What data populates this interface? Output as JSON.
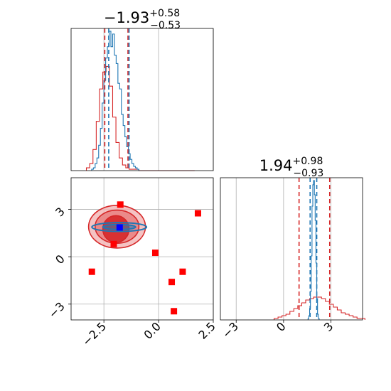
{
  "chart_data": {
    "type": "corner",
    "colors": {
      "blue": "#1f77b4",
      "red": "#d62728",
      "grid": "#b0b0b0"
    },
    "panels": {
      "hist_x": {
        "title": {
          "main": "−1.93",
          "sup": "+0.58",
          "sub": "−0.53"
        },
        "xlim": [
          -4.0,
          2.5
        ],
        "quantile_lines": {
          "blue": [
            -2.28,
            -1.35
          ],
          "red": [
            -2.46,
            -1.4
          ]
        },
        "hist_blue": {
          "edges_start": -3.06,
          "bin_width": 0.08,
          "counts": [
            1,
            2,
            5,
            9,
            18,
            30,
            48,
            64,
            80,
            88,
            99,
            88,
            97,
            82,
            76,
            62,
            58,
            40,
            32,
            24,
            17,
            12,
            8,
            5,
            3,
            2,
            1
          ]
        },
        "hist_red": {
          "edges_start": -3.3,
          "bin_width": 0.15,
          "counts": [
            2,
            5,
            15,
            35,
            58,
            70,
            74,
            60,
            38,
            20,
            9,
            4,
            2,
            1,
            1,
            1,
            0,
            0,
            0,
            0,
            0,
            0,
            0,
            0,
            0,
            0,
            0,
            0,
            0,
            0,
            0,
            0,
            0
          ]
        }
      },
      "scatter": {
        "xlim": [
          -4.0,
          2.5
        ],
        "ylim": [
          -4.0,
          5.0
        ],
        "xticks": [
          -2.5,
          0.0,
          2.5
        ],
        "xtick_labels": [
          "−2.5",
          "0.0",
          "2.5"
        ],
        "yticks": [
          -3,
          0,
          3
        ],
        "ytick_labels": [
          "−3",
          "0",
          "3"
        ],
        "red_squares": [
          {
            "x": -1.75,
            "y": 3.3
          },
          {
            "x": -2.05,
            "y": 0.8
          },
          {
            "x": -3.05,
            "y": -0.95
          },
          {
            "x": -0.15,
            "y": 0.25
          },
          {
            "x": 1.8,
            "y": 2.75
          },
          {
            "x": 1.1,
            "y": -0.95
          },
          {
            "x": 0.6,
            "y": -1.6
          },
          {
            "x": 0.7,
            "y": -3.45
          }
        ],
        "blue_square": {
          "x": -1.78,
          "y": 1.85
        },
        "red_contours": [
          {
            "cx": -1.9,
            "cy": 1.9,
            "rx": 1.3,
            "ry": 1.35
          },
          {
            "cx": -1.9,
            "cy": 1.9,
            "rx": 1.0,
            "ry": 1.05
          },
          {
            "cx": -1.95,
            "cy": 1.75,
            "rx": 0.6,
            "ry": 0.85
          }
        ],
        "blue_contours": [
          {
            "cx": -1.8,
            "cy": 1.88,
            "rx": 1.25,
            "ry": 0.28
          },
          {
            "cx": -1.8,
            "cy": 1.88,
            "rx": 0.75,
            "ry": 0.16
          }
        ]
      },
      "hist_y": {
        "title": {
          "main": "1.94",
          "sup": "+0.98",
          "sub": "−0.93"
        },
        "xlim": [
          -4.0,
          5.0
        ],
        "xticks": [
          -3,
          0,
          3
        ],
        "xtick_labels": [
          "−3",
          "0",
          "3"
        ],
        "quantile_lines": {
          "blue": [
            1.68,
            2.1
          ],
          "red": [
            0.98,
            2.92
          ]
        },
        "hist_blue": {
          "edges_start": 1.55,
          "bin_width": 0.05,
          "counts": [
            1,
            3,
            8,
            20,
            45,
            80,
            95,
            98,
            88,
            70,
            40,
            15,
            4,
            1
          ]
        },
        "hist_red": {
          "edges_start": -0.6,
          "bin_width": 0.25,
          "counts": [
            1,
            2,
            3,
            4,
            6,
            8,
            10,
            12,
            14,
            15,
            16,
            16,
            15,
            13,
            11,
            9,
            7,
            5,
            4,
            3,
            2,
            1,
            1
          ]
        }
      }
    }
  }
}
